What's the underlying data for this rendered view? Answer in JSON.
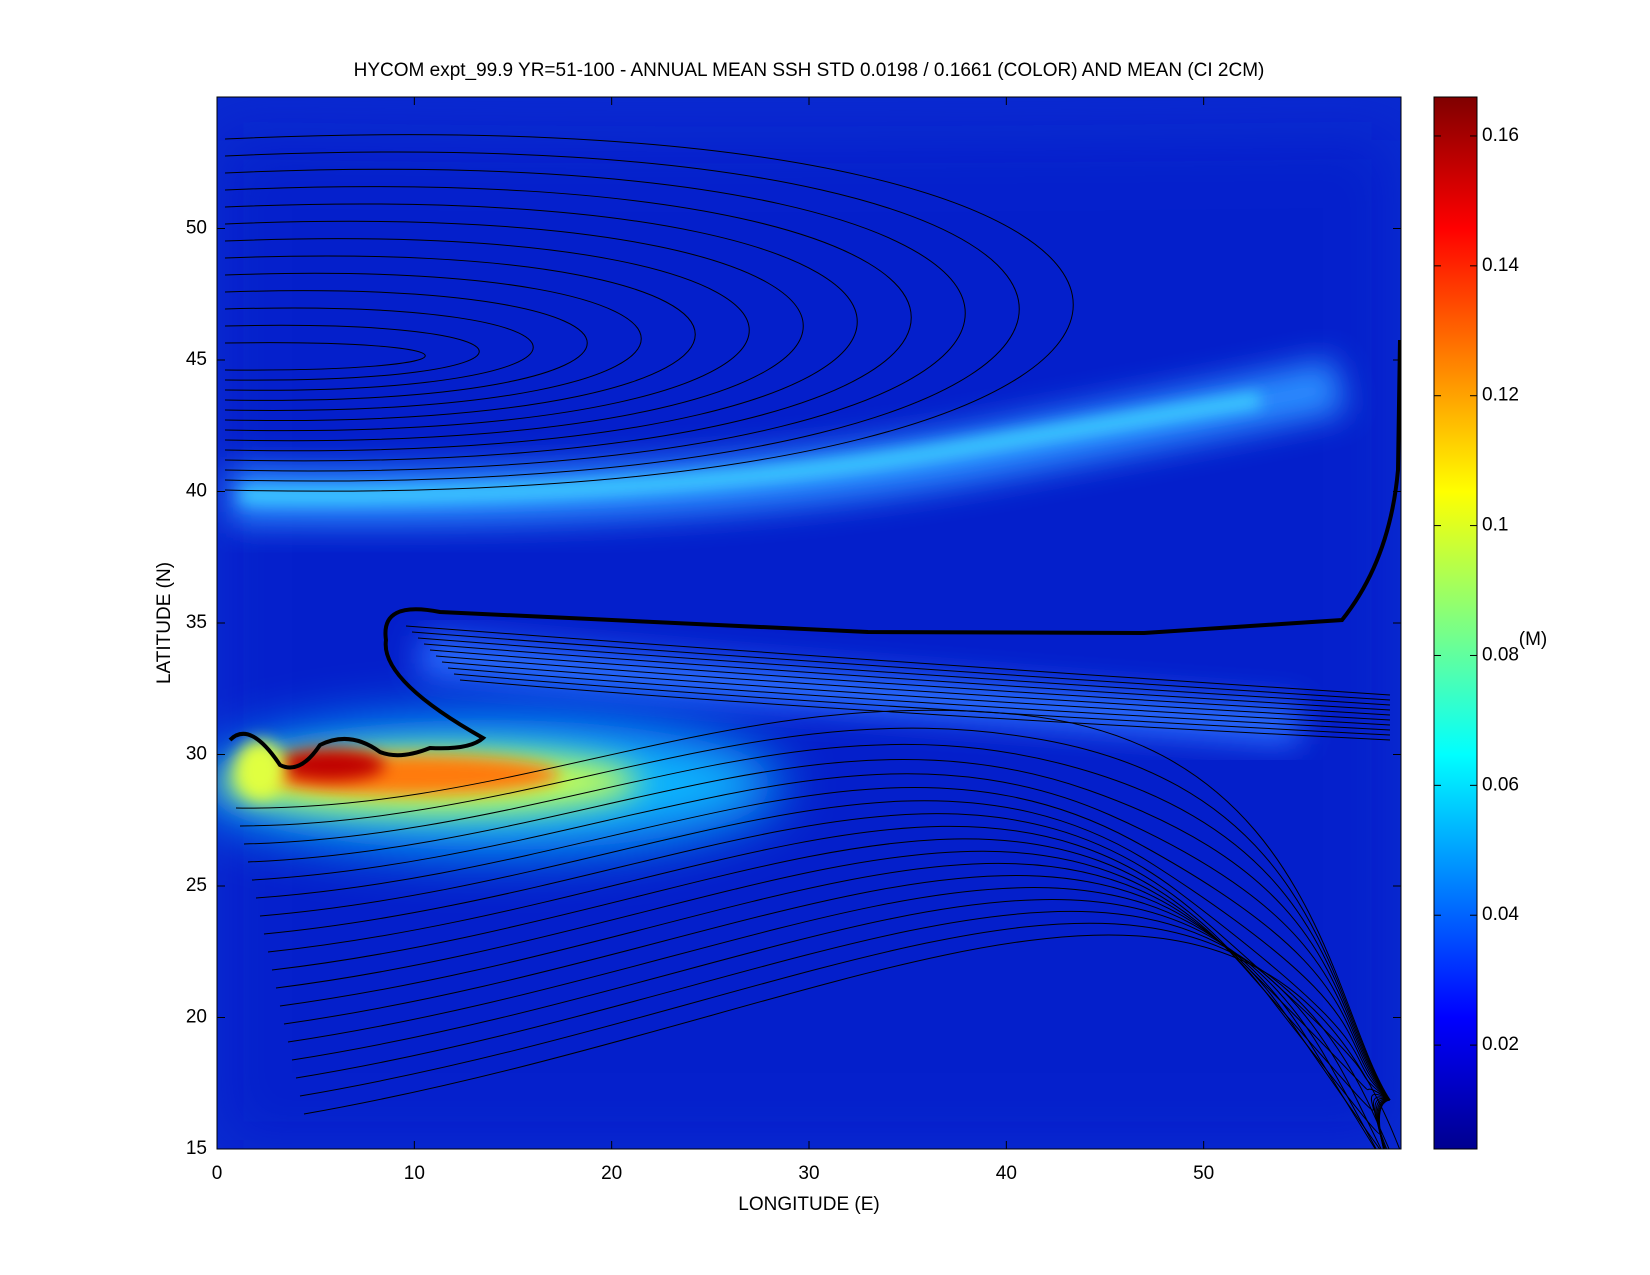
{
  "chart_data": {
    "type": "heatmap",
    "title": "HYCOM expt_99.9 YR=51-100 - ANNUAL MEAN SSH STD 0.0198 / 0.1661 (COLOR) AND MEAN (CI 2CM)",
    "x_label": "LONGITUDE (E)",
    "y_label": "LATITUDE (N)",
    "xlim": [
      0,
      60
    ],
    "xticks": [
      0,
      10,
      20,
      30,
      40,
      50
    ],
    "ylim": [
      15,
      55
    ],
    "yticks": [
      15,
      20,
      25,
      30,
      35,
      40,
      45,
      50
    ],
    "colorbar": {
      "label": "(M)",
      "lim": [
        0.004,
        0.166
      ],
      "ticks": [
        0.02,
        0.04,
        0.06,
        0.08,
        0.1,
        0.12,
        0.14,
        0.16
      ],
      "colormap": "jet"
    }
  }
}
